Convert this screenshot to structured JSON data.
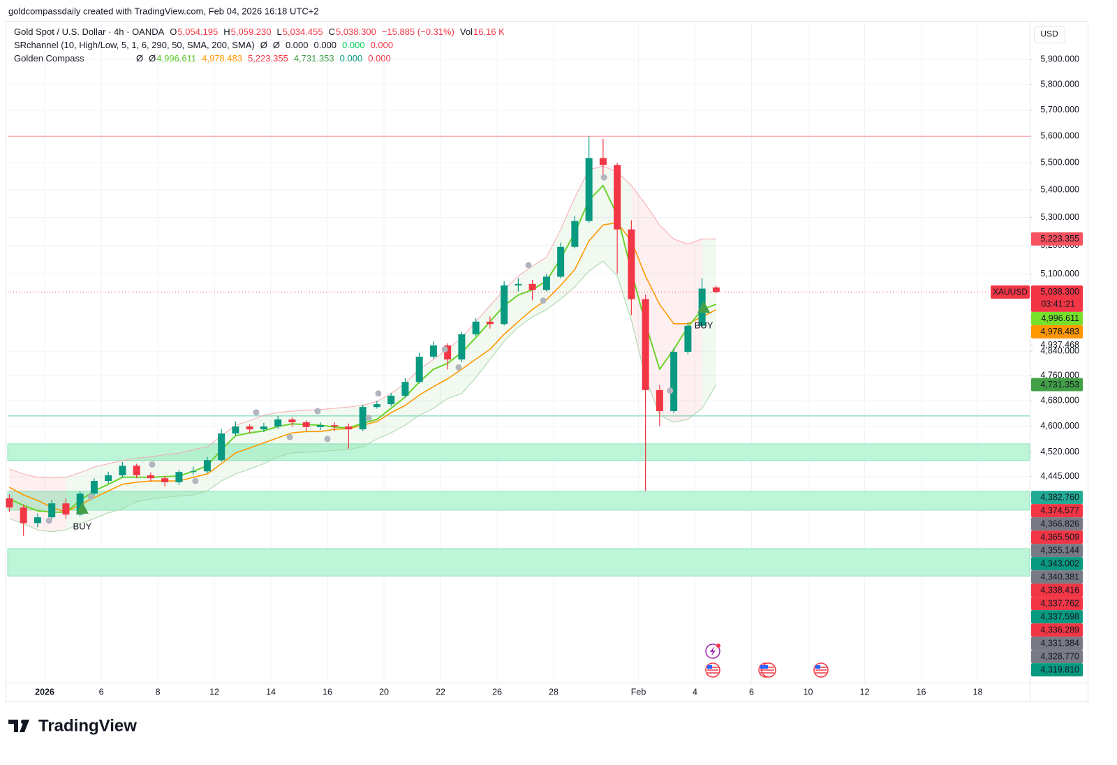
{
  "header": "goldcompassdaily created with TradingView.com, Feb 04, 2026 16:18 UTC+2",
  "brand": "TradingView",
  "legend": [
    [
      {
        "text": "Gold Spot / U.S. Dollar · 4h · OANDA",
        "color": "#131722"
      },
      {
        "text": "O",
        "color": "#131722"
      },
      {
        "text": "5,054.195",
        "color": "#f23645"
      },
      {
        "text": "H",
        "color": "#131722"
      },
      {
        "text": "5,059.230",
        "color": "#f23645"
      },
      {
        "text": "L",
        "color": "#131722"
      },
      {
        "text": "5,034.455",
        "color": "#f23645"
      },
      {
        "text": "C",
        "color": "#131722"
      },
      {
        "text": "5,038.300",
        "color": "#f23645"
      },
      {
        "text": "−15.885 (−0.31%)",
        "color": "#f23645"
      },
      {
        "text": "Vol",
        "color": "#131722"
      },
      {
        "text": "16.16 K",
        "color": "#f23645"
      }
    ],
    [
      {
        "text": "SRchannel (10, High/Low, 5, 1, 6, 290, 50, SMA, 200, SMA)",
        "color": "#131722"
      },
      {
        "text": "Ø",
        "color": "#131722"
      },
      {
        "text": "Ø",
        "color": "#131722"
      },
      {
        "text": "0.000",
        "color": "#131722"
      },
      {
        "text": "0.000",
        "color": "#131722"
      },
      {
        "text": "0.000",
        "color": "#00c853"
      },
      {
        "text": "0.000",
        "color": "#f23645"
      }
    ],
    [
      {
        "text": "Golden Compass",
        "color": "#131722"
      },
      {
        "text": "Ø",
        "color": "#131722"
      },
      {
        "text": "Ø",
        "color": "#131722"
      },
      {
        "text": "4,996.611",
        "color": "#5cc92a"
      },
      {
        "text": "4,978.483",
        "color": "#ff9800"
      },
      {
        "text": "5,223.355",
        "color": "#f23645"
      },
      {
        "text": "4,731.353",
        "color": "#43a047"
      },
      {
        "text": "0.000",
        "color": "#089981"
      },
      {
        "text": "0.000",
        "color": "#f23645"
      }
    ]
  ],
  "chart_data": {
    "type": "candlestick",
    "currency_label": "USD",
    "log_scale": true,
    "grid": true,
    "up_color": "#089981",
    "down_color": "#f23645",
    "xlim": [
      -1.31,
      34.84
    ],
    "ylim": [
      3865,
      6056
    ],
    "xticks": [
      {
        "value": 0,
        "label": "2026"
      },
      {
        "value": 2,
        "label": "6"
      },
      {
        "value": 4,
        "label": "8"
      },
      {
        "value": 6,
        "label": "12"
      },
      {
        "value": 8,
        "label": "14"
      },
      {
        "value": 10,
        "label": "16"
      },
      {
        "value": 12,
        "label": "20"
      },
      {
        "value": 14,
        "label": "22"
      },
      {
        "value": 16,
        "label": "26"
      },
      {
        "value": 18,
        "label": "28"
      },
      {
        "value": 21,
        "label": "Feb"
      },
      {
        "value": 23,
        "label": "4"
      },
      {
        "value": 25,
        "label": "6"
      },
      {
        "value": 27,
        "label": "10"
      },
      {
        "value": 29,
        "label": "12"
      },
      {
        "value": 31,
        "label": "16"
      },
      {
        "value": 33,
        "label": "18"
      }
    ],
    "yticks": [
      {
        "value": 5900,
        "label": "5,900.000"
      },
      {
        "value": 5800,
        "label": "5,800.000"
      },
      {
        "value": 5700,
        "label": "5,700.000"
      },
      {
        "value": 5600,
        "label": "5,600.000"
      },
      {
        "value": 5500,
        "label": "5,500.000"
      },
      {
        "value": 5400,
        "label": "5,400.000"
      },
      {
        "value": 5300,
        "label": "5,300.000"
      },
      {
        "value": 5200,
        "label": "5,200.000"
      },
      {
        "value": 5100,
        "label": "5,100.000"
      },
      {
        "value": 4840,
        "label": "4,840.000"
      },
      {
        "value": 4760,
        "label": "4,760.000"
      },
      {
        "value": 4680,
        "label": "4,680.000"
      },
      {
        "value": 4600,
        "label": "4,600.000"
      },
      {
        "value": 4520,
        "label": "4,520.000"
      },
      {
        "value": 4445,
        "label": "4,445.000"
      }
    ],
    "x": [
      -1.25,
      -0.75,
      -0.25,
      0.25,
      0.75,
      1.25,
      1.75,
      2.25,
      2.75,
      3.25,
      3.75,
      4.25,
      4.75,
      5.25,
      5.75,
      6.25,
      6.75,
      7.25,
      7.75,
      8.25,
      8.75,
      9.25,
      9.75,
      10.25,
      10.75,
      11.25,
      11.75,
      12.25,
      12.75,
      13.25,
      13.75,
      14.25,
      14.75,
      15.25,
      15.75,
      16.25,
      16.75,
      17.25,
      17.75,
      18.25,
      18.75,
      19.25,
      19.75,
      20.25,
      20.75,
      21.25,
      21.75,
      22.25,
      22.75,
      23.25,
      23.75
    ],
    "open": [
      4380,
      4353,
      4307,
      4324,
      4365,
      4332,
      4394,
      4432,
      4449,
      4478,
      4449,
      4440,
      4428,
      4459,
      4461,
      4495,
      4577,
      4599,
      4590,
      4599,
      4621,
      4612,
      4597,
      4603,
      4599,
      4590,
      4660,
      4669,
      4696,
      4740,
      4822,
      4859,
      4813,
      4896,
      4938,
      4930,
      5061,
      5066,
      5045,
      5091,
      5195,
      5287,
      5518,
      5492,
      5257,
      5014,
      4714,
      4647,
      4838,
      4924,
      5054.195
    ],
    "high": [
      4392,
      4362,
      4335,
      4375,
      4380,
      4402,
      4440,
      4460,
      4490,
      4484,
      4458,
      4447,
      4465,
      4475,
      4505,
      4590,
      4615,
      4606,
      4610,
      4632,
      4628,
      4618,
      4612,
      4612,
      4608,
      4668,
      4680,
      4705,
      4752,
      4835,
      4872,
      4866,
      4905,
      4950,
      4955,
      5075,
      5085,
      5080,
      5100,
      5210,
      5305,
      5600,
      5590,
      5500,
      5290,
      5030,
      4730,
      4850,
      4935,
      5085,
      5059.23
    ],
    "low": [
      4340,
      4270,
      4295,
      4318,
      4320,
      4328,
      4388,
      4425,
      4442,
      4440,
      4430,
      4415,
      4420,
      4450,
      4455,
      4490,
      4570,
      4578,
      4582,
      4592,
      4598,
      4585,
      4588,
      4585,
      4530,
      4585,
      4655,
      4662,
      4690,
      4735,
      4815,
      4780,
      4805,
      4890,
      4915,
      4925,
      5040,
      5010,
      5040,
      5085,
      5190,
      5280,
      5455,
      5100,
      4960,
      4402,
      4600,
      4640,
      4830,
      4918,
      5034.455
    ],
    "close": [
      4353,
      4307,
      4324,
      4365,
      4332,
      4394,
      4432,
      4449,
      4478,
      4449,
      4440,
      4428,
      4459,
      4461,
      4495,
      4577,
      4599,
      4590,
      4599,
      4621,
      4612,
      4597,
      4603,
      4599,
      4590,
      4660,
      4669,
      4696,
      4740,
      4822,
      4859,
      4813,
      4896,
      4938,
      4930,
      5061,
      5066,
      5045,
      5091,
      5195,
      5287,
      5518,
      5492,
      5257,
      5014,
      4714,
      4647,
      4838,
      4924,
      5050,
      5038.3
    ],
    "fast": {
      "color": "#6ad42a",
      "values": [
        4378,
        4359,
        4343,
        4339,
        4339,
        4374,
        4402,
        4422,
        4443,
        4443,
        4443,
        4445,
        4447,
        4461,
        4478,
        4527,
        4570,
        4579,
        4585,
        4599,
        4607,
        4605,
        4603,
        4597,
        4594,
        4609,
        4621,
        4656,
        4692,
        4740,
        4781,
        4800,
        4836,
        4885,
        4938,
        4992,
        5028,
        5046,
        5077,
        5154,
        5245,
        5362,
        5416,
        5308,
        5110,
        4931,
        4781,
        4846,
        4920,
        4979,
        4996.611
      ]
    },
    "slow": {
      "color": "#ff9800",
      "values": [
        4413,
        4390,
        4374,
        4353,
        4339,
        4361,
        4382,
        4402,
        4422,
        4428,
        4432,
        4432,
        4432,
        4443,
        4453,
        4484,
        4517,
        4532,
        4548,
        4564,
        4579,
        4583,
        4583,
        4590,
        4592,
        4603,
        4614,
        4642,
        4665,
        4698,
        4725,
        4750,
        4781,
        4814,
        4846,
        4896,
        4938,
        4979,
        5012,
        5061,
        5116,
        5216,
        5273,
        5281,
        5216,
        5093,
        4996,
        4931,
        4931,
        4954,
        4978.483
      ]
    },
    "upper": {
      "color": "#f7a8ae",
      "values": [
        4468,
        4453,
        4443,
        4441,
        4443,
        4457,
        4474,
        4484,
        4494,
        4501,
        4505,
        4512,
        4517,
        4527,
        4536,
        4570,
        4603,
        4617,
        4634,
        4643,
        4647,
        4650,
        4652,
        4656,
        4660,
        4665,
        4678,
        4703,
        4736,
        4781,
        4813,
        4846,
        4885,
        4938,
        4992,
        5046,
        5093,
        5128,
        5159,
        5257,
        5373,
        5474,
        5488,
        5466,
        5416,
        5348,
        5273,
        5223,
        5205,
        5223,
        5223.355
      ]
    },
    "lower": {
      "color": "#a5d6a7",
      "values": [
        4320,
        4305,
        4287,
        4282,
        4287,
        4305,
        4320,
        4337,
        4349,
        4370,
        4378,
        4383,
        4387,
        4390,
        4402,
        4432,
        4453,
        4468,
        4484,
        4505,
        4517,
        4519,
        4521,
        4525,
        4527,
        4536,
        4560,
        4579,
        4603,
        4634,
        4656,
        4687,
        4703,
        4754,
        4813,
        4873,
        4920,
        4954,
        4979,
        5014,
        5056,
        5110,
        5145,
        5093,
        4943,
        4754,
        4634,
        4612,
        4621,
        4656,
        4731.353
      ]
    },
    "band_colors": {
      "up": "rgba(76,175,80,0.08)",
      "down": "rgba(242,54,69,0.08)"
    },
    "signals": {
      "color": "#b2b5be",
      "x": [
        0.15,
        1.63,
        3.8,
        5.33,
        7.48,
        8.67,
        9.65,
        10.0,
        11.46,
        11.8,
        14.15,
        14.64,
        17.11,
        17.63,
        19.78,
        22.12
      ],
      "y": [
        4314,
        4385,
        4482,
        4432,
        4643,
        4566,
        4647,
        4560,
        4626,
        4703,
        4846,
        4787,
        5131,
        5009,
        5446,
        4712
      ]
    },
    "annotations": [
      {
        "text": "BUY",
        "x": 1.33,
        "y": 4351,
        "color": "#2962ff",
        "marker_color": "#43a047"
      },
      {
        "text": "BUY",
        "x": 23.31,
        "y": 4987,
        "color": "#2962ff",
        "marker_color": "#43a047"
      }
    ],
    "levels": [
      {
        "value": 5600,
        "color": "#f7a1a7"
      },
      {
        "value": 4632,
        "color": "#7fdbc0"
      }
    ],
    "zones": [
      {
        "from": 4494,
        "to": 4545
      },
      {
        "from": 4345,
        "to": 4401
      },
      {
        "from": 4155,
        "to": 4233
      }
    ],
    "zone_color": "#bdf5d9",
    "zone_border": "#8fe3b9",
    "price_line_color": "#f23645",
    "price_labels": [
      {
        "value": 5223.355,
        "label": "5,223.355",
        "color": "#f7525f",
        "text_color": "#ffffff"
      },
      {
        "value": 5038.3,
        "label": "5,038.300",
        "sub": "03:41:21",
        "tag": "XAUUSD",
        "color": "#f23645",
        "text_color": "#ffffff"
      },
      {
        "value": 4996.611,
        "label": "4,996.611",
        "color": "#76e02a",
        "text_color": "#131722"
      },
      {
        "value": 4978.483,
        "label": "4,978.483",
        "color": "#ff9800",
        "text_color": "#131722"
      },
      {
        "value": 4937.468,
        "label": "4,937.468",
        "text_color": "#131722"
      },
      {
        "value": 4731.353,
        "label": "4,731.353",
        "color": "#43a047",
        "text_color": "#ffffff"
      },
      {
        "value": 4382.76,
        "label": "4,382.760",
        "color": "#22ab94",
        "text_color": "#ffffff"
      },
      {
        "value": 4374.577,
        "label": "4,374.577",
        "color": "#f23645",
        "text_color": "#ffffff"
      },
      {
        "value": 4366.826,
        "label": "4,366.826",
        "color": "#787b86",
        "text_color": "#ffffff"
      },
      {
        "value": 4365.509,
        "label": "4,365.509",
        "color": "#f23645",
        "text_color": "#ffffff"
      },
      {
        "value": 4355.144,
        "label": "4,355.144",
        "color": "#787b86",
        "text_color": "#ffffff"
      },
      {
        "value": 4343.002,
        "label": "4,343.002",
        "color": "#089981",
        "text_color": "#ffffff"
      },
      {
        "value": 4340.381,
        "label": "4,340.381",
        "color": "#787b86",
        "text_color": "#ffffff"
      },
      {
        "value": 4338.416,
        "label": "4,338.416",
        "color": "#f23645",
        "text_color": "#ffffff"
      },
      {
        "value": 4337.762,
        "label": "4,337.762",
        "color": "#f23645",
        "text_color": "#ffffff"
      },
      {
        "value": 4337.598,
        "label": "4,337.598",
        "color": "#089981",
        "text_color": "#ffffff"
      },
      {
        "value": 4336.289,
        "label": "4,336.289",
        "color": "#f23645",
        "text_color": "#ffffff"
      },
      {
        "value": 4331.384,
        "label": "4,331.384",
        "color": "#787b86",
        "text_color": "#ffffff"
      },
      {
        "value": 4328.77,
        "label": "4,328.770",
        "color": "#787b86",
        "text_color": "#ffffff"
      },
      {
        "value": 4319.81,
        "label": "4,319.810",
        "color": "#089981",
        "text_color": "#ffffff"
      }
    ]
  }
}
